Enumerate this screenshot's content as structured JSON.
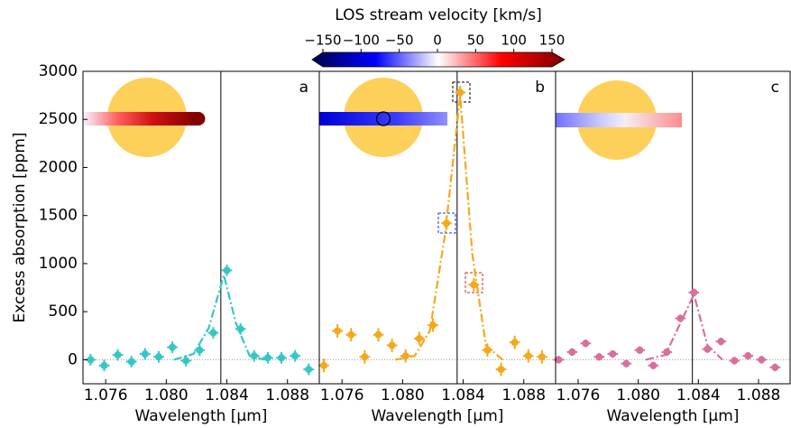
{
  "colorbar": {
    "title": "LOS stream velocity [km/s]",
    "lim": [
      -150,
      150
    ],
    "ticks": [
      {
        "value": -150,
        "label": "−150"
      },
      {
        "value": -100,
        "label": "−100"
      },
      {
        "value": -50,
        "label": "−50"
      },
      0,
      50,
      100,
      150
    ]
  },
  "chart_data": [
    {
      "type": "scatter",
      "label": "a",
      "color": "#35c6c6",
      "xlabel": "Wavelength [μm]",
      "ylabel": "Excess absorption [ppm]",
      "xlim": [
        1.0745,
        1.0901
      ],
      "xticks": [
        1.076,
        {
          "value": 1.08,
          "label": "1.080"
        },
        1.084,
        1.088
      ],
      "ylim": [
        -250,
        3000
      ],
      "yticks": [
        0,
        500,
        1000,
        1500,
        2000,
        2500,
        3000
      ],
      "vline": 1.0836,
      "x": [
        1.075,
        1.0759,
        1.0768,
        1.0777,
        1.0786,
        1.0795,
        1.0804,
        1.0813,
        1.0822,
        1.0831,
        1.084,
        1.0849,
        1.0858,
        1.0867,
        1.0876,
        1.0885,
        1.0894
      ],
      "values": [
        0,
        -60,
        50,
        -20,
        60,
        30,
        130,
        -10,
        100,
        280,
        930,
        320,
        40,
        20,
        20,
        40,
        -100
      ],
      "xerr": 0.00035,
      "yerr": 60,
      "model": {
        "x": [
          1.0805,
          1.0818,
          1.0828,
          1.0838,
          1.0846,
          1.0855,
          1.0865
        ],
        "values": [
          0,
          60,
          330,
          880,
          380,
          40,
          0
        ]
      }
    },
    {
      "type": "scatter",
      "label": "b",
      "color": "#f5a81c",
      "xlabel": "Wavelength [μm]",
      "xlim": [
        1.0745,
        1.0901
      ],
      "xticks": [
        1.076,
        {
          "value": 1.08,
          "label": "1.080"
        },
        1.084,
        1.088
      ],
      "ylim": [
        -250,
        3000
      ],
      "vline": 1.0836,
      "x": [
        1.0748,
        1.0757,
        1.0766,
        1.0775,
        1.0784,
        1.0793,
        1.0802,
        1.0811,
        1.082,
        1.0829,
        1.0838,
        1.0847,
        1.0856,
        1.0865,
        1.0874,
        1.0883,
        1.0892
      ],
      "values": [
        -60,
        300,
        260,
        30,
        260,
        150,
        40,
        220,
        360,
        1420,
        2780,
        780,
        100,
        -100,
        180,
        40,
        30
      ],
      "xerr": 0.00035,
      "yerr": 70,
      "model": {
        "x": [
          1.0795,
          1.0808,
          1.0818,
          1.0828,
          1.0838,
          1.0846,
          1.0855,
          1.0866
        ],
        "values": [
          0,
          40,
          300,
          1300,
          2750,
          1100,
          150,
          0
        ]
      }
    },
    {
      "type": "scatter",
      "label": "c",
      "color": "#d96f9c",
      "xlabel": "Wavelength [μm]",
      "xlim": [
        1.0745,
        1.0901
      ],
      "xticks": [
        1.076,
        {
          "value": 1.08,
          "label": "1.080"
        },
        1.084,
        1.088
      ],
      "ylim": [
        -250,
        3000
      ],
      "vline": 1.0836,
      "x": [
        1.0747,
        1.0756,
        1.0765,
        1.0774,
        1.0783,
        1.0792,
        1.0801,
        1.081,
        1.0819,
        1.0828,
        1.0837,
        1.0846,
        1.0855,
        1.0864,
        1.0873,
        1.0882,
        1.0891
      ],
      "values": [
        0,
        80,
        170,
        30,
        60,
        -40,
        100,
        -60,
        80,
        430,
        700,
        110,
        190,
        -10,
        40,
        0,
        -80
      ],
      "xerr": 0.00035,
      "yerr": 40,
      "model": {
        "x": [
          1.0805,
          1.0818,
          1.0828,
          1.0837,
          1.0846,
          1.0856
        ],
        "values": [
          0,
          50,
          380,
          680,
          150,
          0
        ]
      }
    }
  ]
}
